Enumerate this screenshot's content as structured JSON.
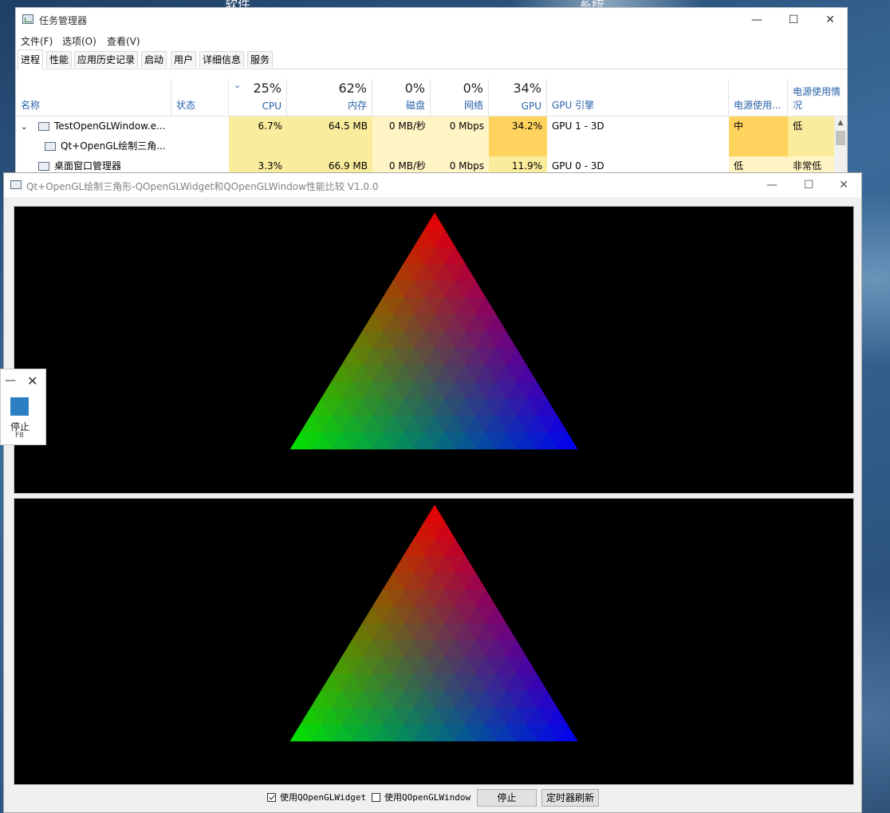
{
  "desktop": {
    "label_left": "软件",
    "label_right": "系统"
  },
  "task_manager": {
    "title": "任务管理器",
    "menu": [
      "文件(F)",
      "选项(O)",
      "查看(V)"
    ],
    "tabs": [
      "进程",
      "性能",
      "应用历史记录",
      "启动",
      "用户",
      "详细信息",
      "服务"
    ],
    "active_tab": "进程",
    "columns": {
      "name": "名称",
      "status": "状态",
      "cpu": {
        "pct": "25%",
        "label": "CPU"
      },
      "mem": {
        "pct": "62%",
        "label": "内存"
      },
      "disk": {
        "pct": "0%",
        "label": "磁盘"
      },
      "net": {
        "pct": "0%",
        "label": "网络"
      },
      "gpu": {
        "pct": "34%",
        "label": "GPU"
      },
      "gpu_engine": "GPU 引擎",
      "power": "电源使用...",
      "power_trend": "电源使用情况"
    },
    "rows": [
      {
        "name": "TestOpenGLWindow.e...",
        "cpu": "6.7%",
        "mem": "64.5 MB",
        "disk": "0 MB/秒",
        "net": "0 Mbps",
        "gpu": "34.2%",
        "gpu_engine": "GPU 1 - 3D",
        "power": "中",
        "power_trend": "低",
        "expanded": true
      },
      {
        "name": "Qt+OpenGL绘制三角...",
        "child": true
      },
      {
        "name": "桌面窗口管理器",
        "cpu": "3.3%",
        "mem": "66.9 MB",
        "disk": "0 MB/秒",
        "net": "0 Mbps",
        "gpu": "11.9%",
        "gpu_engine": "GPU 0 - 3D",
        "power": "低",
        "power_trend": "非常低"
      }
    ]
  },
  "qt_window": {
    "title": "Qt+OpenGL绘制三角形-QOpenGLWidget和QOpenGLWindow性能比较 V1.0.0",
    "checkbox_widget": {
      "label": "使用QOpenGLWidget",
      "checked": true
    },
    "checkbox_window": {
      "label": "使用QOpenGLWindow",
      "checked": false
    },
    "stop_button": "停止",
    "timer_button": "定时器刷新"
  },
  "side_panel": {
    "label": "停止",
    "shortcut": "F8",
    "accent": "#2b7fc2"
  }
}
